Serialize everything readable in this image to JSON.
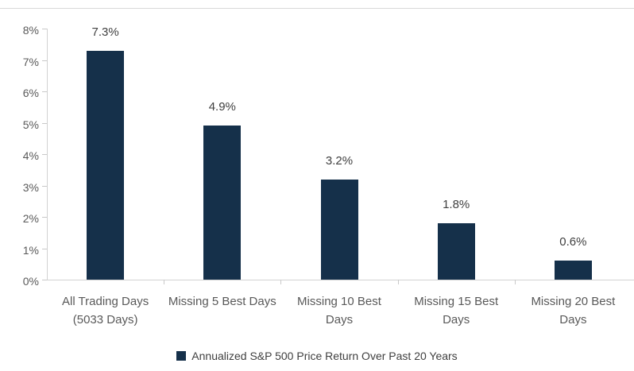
{
  "chart_data": {
    "type": "bar",
    "title": "",
    "xlabel": "",
    "ylabel": "",
    "categories": [
      "All Trading Days\n(5033 Days)",
      "Missing 5 Best Days",
      "Missing 10 Best\nDays",
      "Missing 15 Best\nDays",
      "Missing 20 Best\nDays"
    ],
    "values": [
      7.3,
      4.9,
      3.2,
      1.8,
      0.6
    ],
    "value_labels": [
      "7.3%",
      "4.9%",
      "3.2%",
      "1.8%",
      "0.6%"
    ],
    "ylim": [
      0,
      8
    ],
    "ytick_step": 1,
    "ytick_labels": [
      "0%",
      "1%",
      "2%",
      "3%",
      "4%",
      "5%",
      "6%",
      "7%",
      "8%"
    ],
    "grid": false,
    "legend": {
      "position": "bottom",
      "entries": [
        {
          "label": "Annualized S&P 500 Price Return Over Past 20 Years",
          "color": "#15304a"
        }
      ]
    },
    "colors": {
      "bar": "#15304a",
      "axis": "#d2d2d2",
      "tick_label": "#595959",
      "data_label": "#404040",
      "top_rule": "#d9d9d9"
    }
  }
}
